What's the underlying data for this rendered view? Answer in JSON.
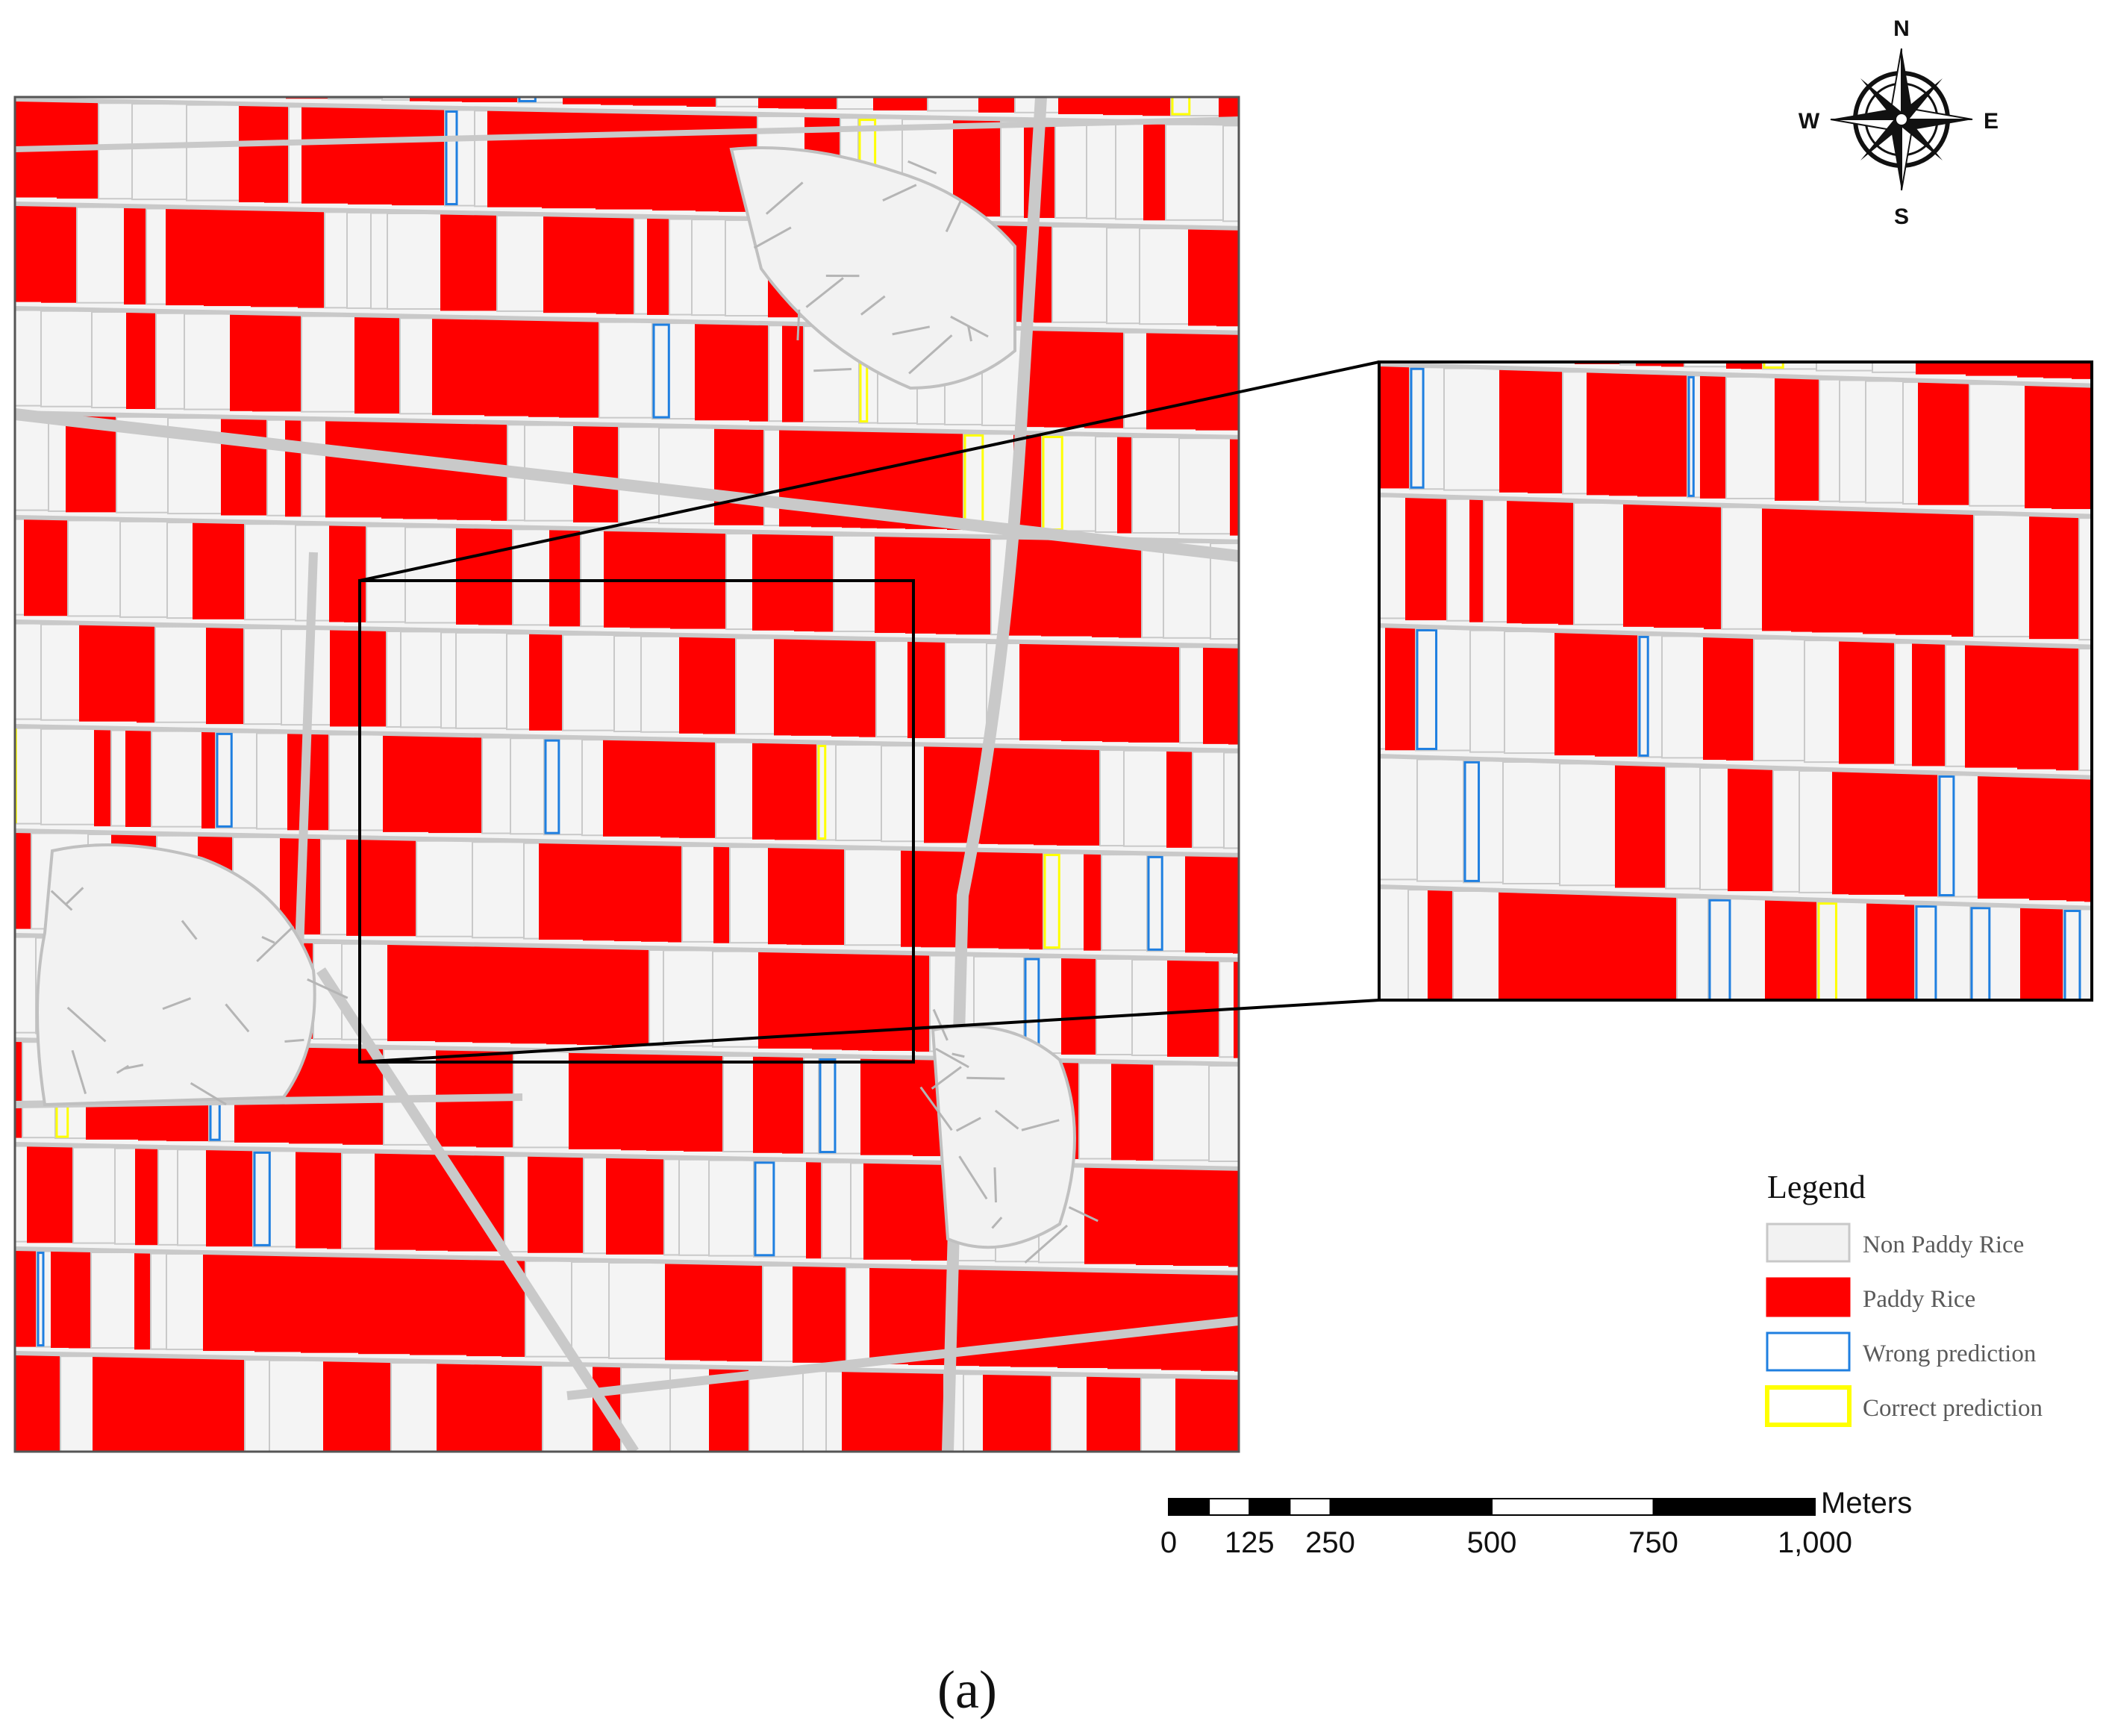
{
  "compass": {
    "north": "N",
    "south": "S",
    "east": "E",
    "west": "W",
    "icon": "compass-rose-icon"
  },
  "legend": {
    "title": "Legend",
    "items": [
      {
        "label": "Non Paddy Rice",
        "fill": "#f2f2f2",
        "stroke": "#c8c8c8"
      },
      {
        "label": "Paddy Rice",
        "fill": "#ff0000",
        "stroke": "#ff0000"
      },
      {
        "label": "Wrong prediction",
        "fill": "#ffffff",
        "stroke": "#1f7fe0"
      },
      {
        "label": "Correct prediction",
        "fill": "#ffffff",
        "stroke": "#ffff00"
      }
    ]
  },
  "scale_bar": {
    "unit": "Meters",
    "labels": [
      "0",
      "125",
      "250",
      "500",
      "750",
      "1,000"
    ]
  },
  "caption": "(a)",
  "colors": {
    "paddy": "#ff0000",
    "non_paddy": "#f4f4f4",
    "road": "#c9c9c9",
    "wrong": "#1f7fe0",
    "correct": "#ffff00"
  }
}
